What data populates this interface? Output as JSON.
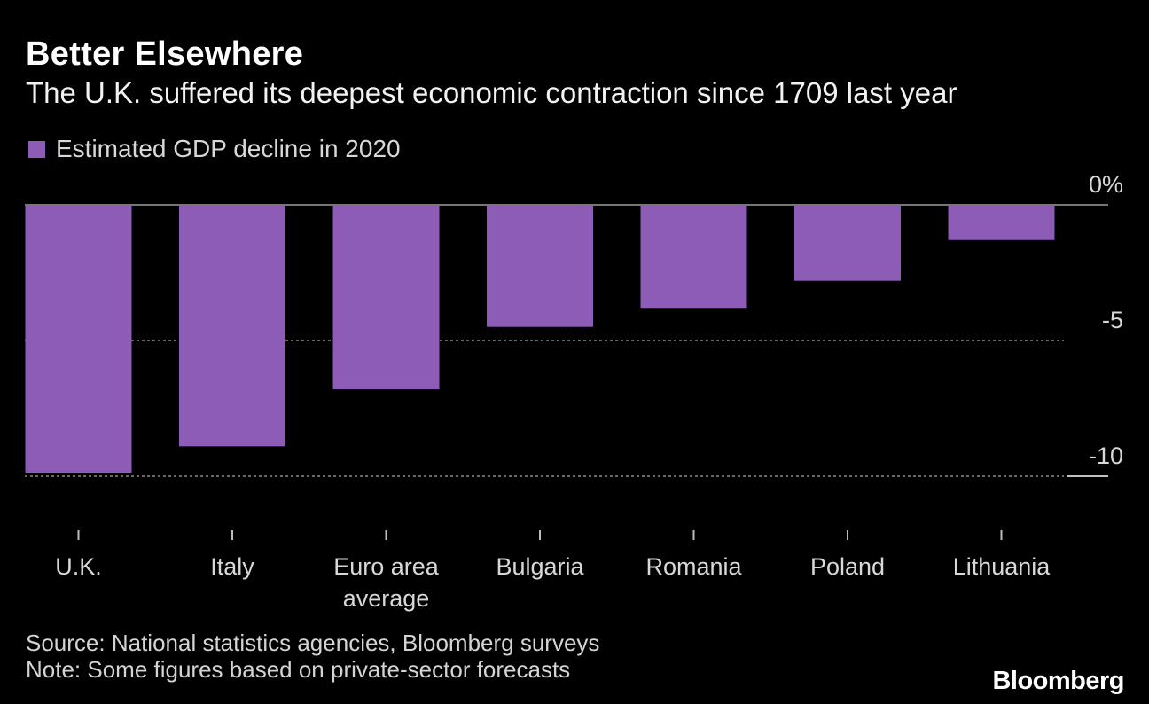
{
  "title": "Better Elsewhere",
  "subtitle": "The U.K. suffered its deepest economic contraction since 1709 last year",
  "legend_label": "Estimated GDP decline in 2020",
  "source": "Source: National statistics agencies, Bloomberg surveys",
  "note": "Note: Some figures based on private-sector forecasts",
  "brand": "Bloomberg",
  "colors": {
    "bar": "#8c5cb7",
    "background": "#000000",
    "zero_line": "#9a9a9a",
    "grid": "#8a8a8a"
  },
  "chart_data": {
    "type": "bar",
    "title": "Better Elsewhere",
    "subtitle": "The U.K. suffered its deepest economic contraction since 1709 last year",
    "categories": [
      [
        "U.K."
      ],
      [
        "Italy"
      ],
      [
        "Euro area",
        "average"
      ],
      [
        "Bulgaria"
      ],
      [
        "Romania"
      ],
      [
        "Poland"
      ],
      [
        "Lithuania"
      ]
    ],
    "series": [
      {
        "name": "Estimated GDP decline in 2020",
        "values": [
          -9.9,
          -8.9,
          -6.8,
          -4.5,
          -3.8,
          -2.8,
          -1.3
        ]
      }
    ],
    "yticks": [
      0,
      -5,
      -10
    ],
    "ytick_labels": [
      "0%",
      "-5",
      "-10"
    ],
    "ylim": [
      -10,
      0
    ],
    "xlabel": "",
    "ylabel": "",
    "legend_position": "top-left"
  }
}
